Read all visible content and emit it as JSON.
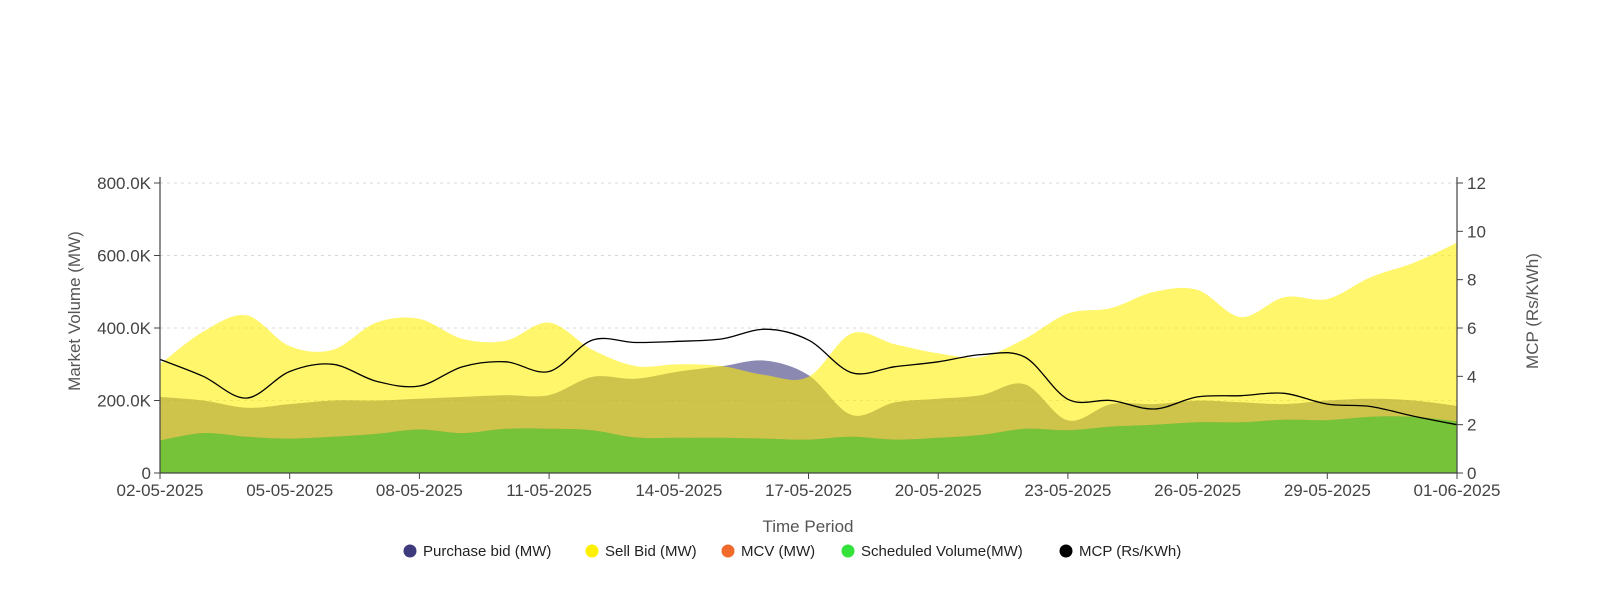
{
  "chart_data": {
    "type": "area",
    "xlabel": "Time Period",
    "ylabel_left": "Market Volume (MW)",
    "ylabel_right": "MCP (Rs/KWh)",
    "x_start": "02-05-2025",
    "x_end": "01-06-2025",
    "x_tick_labels": [
      "02-05-2025",
      "05-05-2025",
      "08-05-2025",
      "11-05-2025",
      "14-05-2025",
      "17-05-2025",
      "20-05-2025",
      "23-05-2025",
      "26-05-2025",
      "29-05-2025",
      "01-06-2025"
    ],
    "y_left_tick_labels": [
      "0",
      "200.0K",
      "400.0K",
      "600.0K",
      "800.0K"
    ],
    "y_left_range": [
      0,
      800000
    ],
    "y_right_tick_labels": [
      "0",
      "2",
      "4",
      "6",
      "8",
      "10",
      "12"
    ],
    "y_right_range": [
      0,
      12
    ],
    "grid": "horizontal dotted",
    "legend_position": "bottom-center",
    "x": [
      "02-05-2025",
      "03-05-2025",
      "04-05-2025",
      "05-05-2025",
      "06-05-2025",
      "07-05-2025",
      "08-05-2025",
      "09-05-2025",
      "10-05-2025",
      "11-05-2025",
      "12-05-2025",
      "13-05-2025",
      "14-05-2025",
      "15-05-2025",
      "16-05-2025",
      "17-05-2025",
      "18-05-2025",
      "19-05-2025",
      "20-05-2025",
      "21-05-2025",
      "22-05-2025",
      "23-05-2025",
      "24-05-2025",
      "25-05-2025",
      "26-05-2025",
      "27-05-2025",
      "28-05-2025",
      "29-05-2025",
      "30-05-2025",
      "31-05-2025",
      "01-06-2025"
    ],
    "series": [
      {
        "name": "Purchase bid (MW)",
        "axis": "left",
        "color": "#3e3a7e",
        "values": [
          210000,
          200000,
          180000,
          190000,
          200000,
          200000,
          205000,
          210000,
          215000,
          215000,
          265000,
          260000,
          280000,
          295000,
          310000,
          270000,
          160000,
          195000,
          205000,
          215000,
          245000,
          145000,
          190000,
          190000,
          200000,
          195000,
          190000,
          200000,
          205000,
          200000,
          185000
        ]
      },
      {
        "name": "Sell Bid (MW)",
        "axis": "left",
        "color": "#fff000",
        "values": [
          300000,
          390000,
          435000,
          350000,
          340000,
          415000,
          425000,
          370000,
          365000,
          415000,
          340000,
          295000,
          300000,
          295000,
          270000,
          265000,
          385000,
          355000,
          330000,
          320000,
          370000,
          440000,
          455000,
          500000,
          505000,
          430000,
          485000,
          480000,
          540000,
          580000,
          635000
        ]
      },
      {
        "name": "MCV (MW)",
        "axis": "left",
        "color": "#f06a2c",
        "values": [
          90000,
          110000,
          100000,
          95000,
          100000,
          108000,
          120000,
          110000,
          122000,
          122000,
          118000,
          98000,
          97000,
          97000,
          95000,
          92000,
          100000,
          92000,
          97000,
          105000,
          122000,
          118000,
          128000,
          133000,
          140000,
          140000,
          147000,
          146000,
          155000,
          155000,
          142000
        ]
      },
      {
        "name": "Scheduled Volume(MW)",
        "axis": "left",
        "color": "#34e23c",
        "values": [
          90000,
          110000,
          100000,
          95000,
          100000,
          108000,
          120000,
          110000,
          122000,
          122000,
          118000,
          98000,
          97000,
          97000,
          95000,
          92000,
          100000,
          92000,
          97000,
          105000,
          122000,
          118000,
          128000,
          133000,
          140000,
          140000,
          147000,
          146000,
          155000,
          155000,
          142000
        ]
      },
      {
        "name": "MCP (Rs/KWh)",
        "axis": "right",
        "color": "#000000",
        "values": [
          4.7,
          4.0,
          3.1,
          4.2,
          4.5,
          3.8,
          3.6,
          4.4,
          4.6,
          4.2,
          5.5,
          5.4,
          5.45,
          5.55,
          5.95,
          5.5,
          4.15,
          4.4,
          4.6,
          4.9,
          4.8,
          3.05,
          3.0,
          2.65,
          3.15,
          3.2,
          3.3,
          2.85,
          2.75,
          2.35,
          2.0
        ]
      }
    ]
  }
}
